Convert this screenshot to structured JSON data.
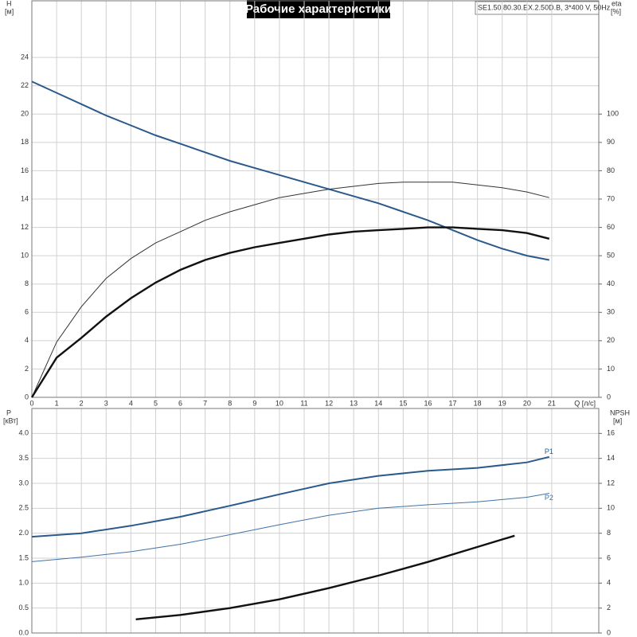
{
  "chart_data": [
    {
      "type": "line",
      "title": "Рабочие характеристики",
      "subtitle": "SE1.50.80.30.EX.2.50D.B, 3*400 V, 50Hz",
      "y_label": "H",
      "y_unit": "[м]",
      "y2_label": "eta",
      "y2_unit": "[%]",
      "x_label": "Q [л/с]",
      "x": [
        0,
        1,
        2,
        3,
        4,
        5,
        6,
        7,
        8,
        9,
        10,
        11,
        12,
        13,
        14,
        15,
        16,
        17,
        18,
        19,
        20,
        20.9
      ],
      "series": [
        {
          "color": "#2a5a8c",
          "values": [
            22.3,
            21.5,
            20.7,
            19.9,
            19.2,
            18.5,
            17.9,
            17.3,
            16.7,
            16.2,
            15.7,
            15.2,
            14.7,
            14.2,
            13.7,
            13.1,
            12.5,
            11.8,
            11.1,
            10.5,
            10.0,
            9.7
          ]
        },
        {
          "color": "#333333",
          "axis": "y2",
          "values": [
            0,
            19.5,
            32,
            42,
            49,
            54.5,
            58.5,
            62.5,
            65.5,
            68,
            70.5,
            72,
            73.5,
            74.5,
            75.5,
            76,
            76,
            76,
            75,
            74,
            72.5,
            70.5
          ]
        },
        {
          "color": "#111111",
          "axis": "y2",
          "values": [
            0,
            14,
            21,
            28.5,
            35,
            40.5,
            45,
            48.5,
            51,
            53,
            54.5,
            56,
            57.5,
            58.5,
            59,
            59.5,
            60,
            60,
            59.5,
            59,
            58,
            56
          ]
        }
      ],
      "xlim": [
        0,
        22.9
      ],
      "xticks": [
        0,
        1,
        2,
        3,
        4,
        5,
        6,
        7,
        8,
        9,
        10,
        11,
        12,
        13,
        14,
        15,
        16,
        17,
        18,
        19,
        20,
        21
      ],
      "ylim": [
        0,
        28
      ],
      "yticks": [
        0,
        2,
        4,
        6,
        8,
        10,
        12,
        14,
        16,
        18,
        20,
        22,
        24
      ],
      "y2lim": [
        0,
        140
      ],
      "y2ticks": [
        0,
        10,
        20,
        30,
        40,
        50,
        60,
        70,
        80,
        90,
        100
      ],
      "grid": true
    },
    {
      "type": "line",
      "y_label": "P",
      "y_unit": "[кВт]",
      "y2_label": "NPSH",
      "y2_unit": "[м]",
      "x": [
        0,
        2,
        4,
        6,
        8,
        10,
        12,
        14,
        16,
        18,
        20,
        20.9
      ],
      "series": [
        {
          "name": "P1",
          "color": "#2a5a8c",
          "values": [
            1.93,
            2.0,
            2.15,
            2.33,
            2.55,
            2.78,
            3.0,
            3.15,
            3.25,
            3.31,
            3.42,
            3.53
          ]
        },
        {
          "name": "P2",
          "color": "#3f72a8",
          "values": [
            1.43,
            1.52,
            1.63,
            1.78,
            1.97,
            2.17,
            2.36,
            2.5,
            2.57,
            2.63,
            2.72,
            2.8
          ]
        },
        {
          "color": "#111111",
          "axis": "y2",
          "x": [
            4.2,
            6,
            8,
            10,
            12,
            14,
            16,
            18,
            19.5
          ],
          "values": [
            1.1,
            1.45,
            2.0,
            2.7,
            3.6,
            4.6,
            5.7,
            6.9,
            7.8
          ]
        }
      ],
      "ylim": [
        0,
        4.5
      ],
      "yticks": [
        {
          "value": 0,
          "label": "0.0"
        },
        {
          "value": 0.5,
          "label": "0.5"
        },
        {
          "value": 1,
          "label": "1.0"
        },
        {
          "value": 1.5,
          "label": "1.5"
        },
        {
          "value": 2,
          "label": "2.0"
        },
        {
          "value": 2.5,
          "label": "2.5"
        },
        {
          "value": 3,
          "label": "3.0"
        },
        {
          "value": 3.5,
          "label": "3.5"
        },
        {
          "value": 4,
          "label": "4.0"
        }
      ],
      "y2lim": [
        0,
        18
      ],
      "y2ticks": [
        0,
        2,
        4,
        6,
        8,
        10,
        12,
        14,
        16
      ],
      "grid": true
    }
  ]
}
